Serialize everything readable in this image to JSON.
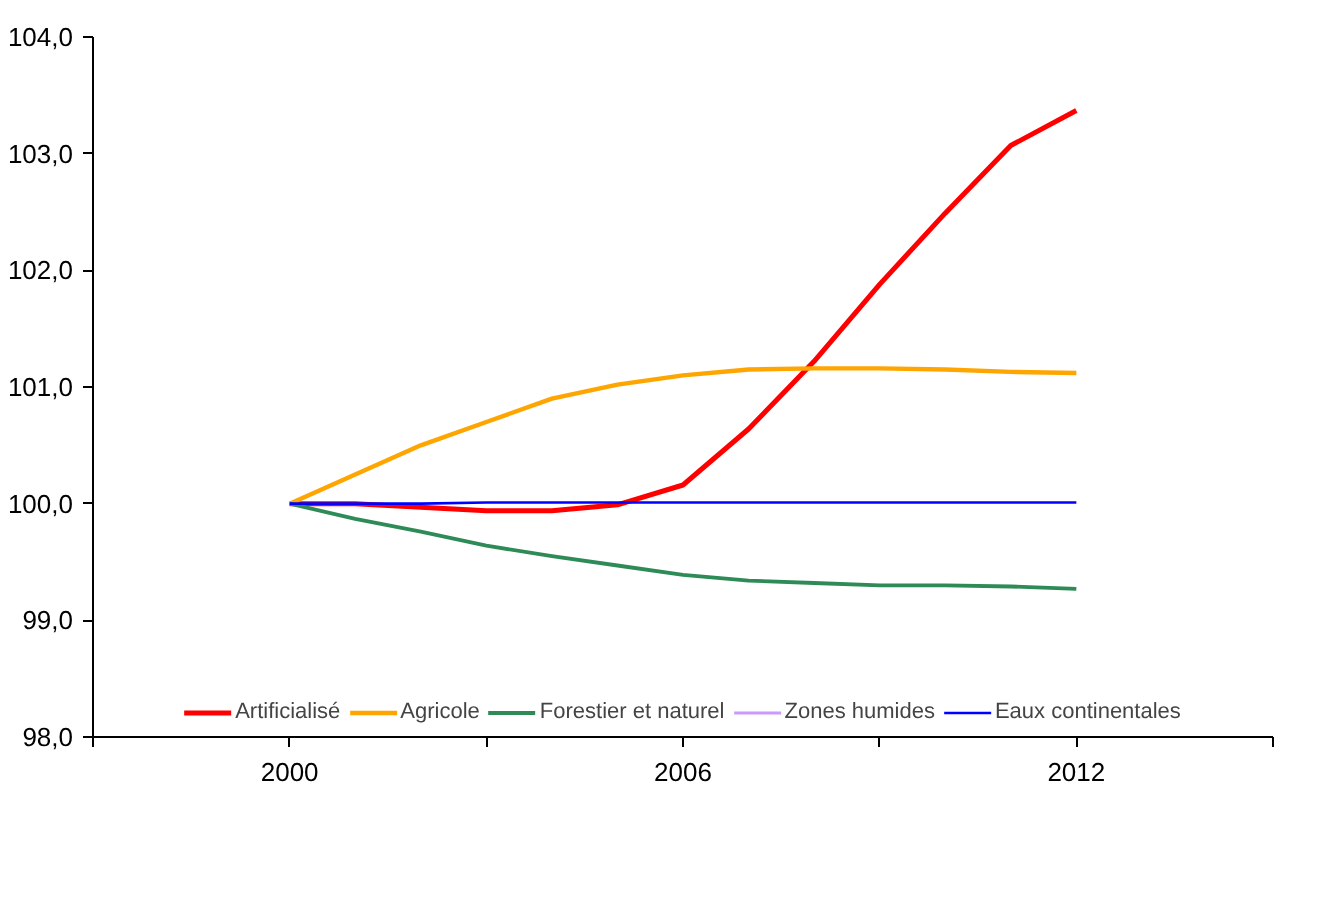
{
  "chart_data": {
    "type": "line",
    "x": [
      2000,
      2001,
      2002,
      2003,
      2004,
      2005,
      2006,
      2007,
      2008,
      2009,
      2010,
      2011,
      2012
    ],
    "series": [
      {
        "name": "Artificialisé",
        "color": "#ff0000",
        "values": [
          100.0,
          100.0,
          99.97,
          99.94,
          99.94,
          99.99,
          100.16,
          100.64,
          101.22,
          101.88,
          102.49,
          103.07,
          103.37
        ]
      },
      {
        "name": "Agricole",
        "color": "#ffa500",
        "values": [
          100.0,
          100.25,
          100.5,
          100.7,
          100.9,
          101.02,
          101.1,
          101.15,
          101.16,
          101.16,
          101.15,
          101.13,
          101.12
        ]
      },
      {
        "name": "Forestier et naturel",
        "color": "#2e8b57",
        "values": [
          100.0,
          99.87,
          99.76,
          99.64,
          99.55,
          99.47,
          99.39,
          99.34,
          99.32,
          99.3,
          99.3,
          99.29,
          99.27
        ]
      },
      {
        "name": "Zones humides",
        "color": "#cc99ff",
        "values": [
          null,
          null,
          null,
          null,
          null,
          null,
          null,
          null,
          null,
          null,
          null,
          null,
          null
        ]
      },
      {
        "name": "Eaux continentales",
        "color": "#0000ff",
        "values": [
          100.0,
          100.0,
          100.0,
          100.01,
          100.01,
          100.01,
          100.01,
          100.01,
          100.01,
          100.01,
          100.01,
          100.01,
          100.01
        ]
      }
    ],
    "xlim": [
      1997,
      2015
    ],
    "xticks": [
      {
        "value": 1997,
        "label": null
      },
      {
        "value": 2000,
        "label": "2000"
      },
      {
        "value": 2003,
        "label": null
      },
      {
        "value": 2006,
        "label": "2006"
      },
      {
        "value": 2009,
        "label": null
      },
      {
        "value": 2012,
        "label": "2012"
      },
      {
        "value": 2015,
        "label": null
      }
    ],
    "ylim": [
      98,
      104
    ],
    "yticks": [
      {
        "value": 98,
        "label": "98,0"
      },
      {
        "value": 99,
        "label": "99,0"
      },
      {
        "value": 100,
        "label": "100,0"
      },
      {
        "value": 101,
        "label": "101,0"
      },
      {
        "value": 102,
        "label": "102,0"
      },
      {
        "value": 103,
        "label": "103,0"
      },
      {
        "value": 104,
        "label": "104,0"
      }
    ],
    "grid": false,
    "legend": "bottom",
    "marker": "none",
    "line_style": "solid"
  }
}
